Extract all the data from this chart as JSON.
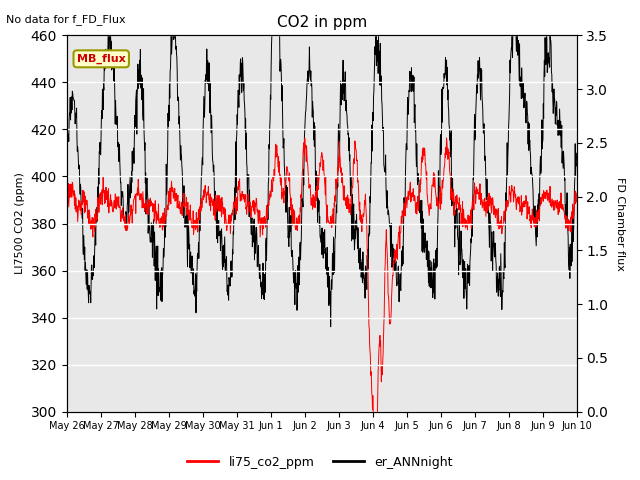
{
  "title": "CO2 in ppm",
  "subtitle": "No data for f_FD_Flux",
  "ylabel_left": "LI7500 CO2 (ppm)",
  "ylabel_right": "FD Chamber flux",
  "ylim_left": [
    300,
    460
  ],
  "ylim_right": [
    0.0,
    3.5
  ],
  "yticks_left": [
    300,
    320,
    340,
    360,
    380,
    400,
    420,
    440,
    460
  ],
  "yticks_right": [
    0.0,
    0.5,
    1.0,
    1.5,
    2.0,
    2.5,
    3.0,
    3.5
  ],
  "legend_label_red": "li75_co2_ppm",
  "legend_label_black": "er_ANNnight",
  "legend_box_label": "MB_flux",
  "bg_color": "#e8e8e8",
  "line_color_red": "#ff0000",
  "line_color_black": "#000000",
  "n_points": 1440,
  "days_labels": [
    "May 26",
    "May 27",
    "May 28",
    "May 29",
    "May 30",
    "May 31",
    "Jun 1",
    "Jun 2",
    "Jun 3",
    "Jun 4",
    "Jun 5",
    "Jun 6",
    "Jun 7",
    "Jun 8",
    "Jun 9",
    "Jun 10"
  ]
}
